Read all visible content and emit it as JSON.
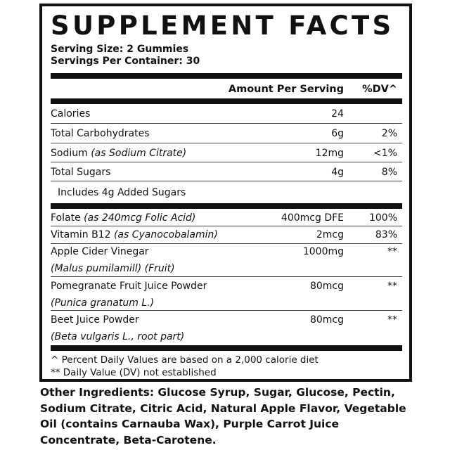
{
  "title": "SUPPLEMENT FACTS",
  "serving_size": "Serving Size: 2 Gummies",
  "servings_per_container": "Servings Per Container: 30",
  "header": {
    "amount": "Amount Per Serving",
    "dv": "%DV^"
  },
  "rows": [
    {
      "name": "Calories",
      "detail": "",
      "amount": "24",
      "dv": ""
    },
    {
      "name": "Total Carbohydrates",
      "detail": "",
      "amount": "6g",
      "dv": "2%"
    },
    {
      "name": "Sodium ",
      "detail": "(as Sodium Citrate)",
      "amount": "12mg",
      "dv": "<1%"
    },
    {
      "name": "Total Sugars",
      "detail": "",
      "amount": "4g",
      "dv": "8%"
    },
    {
      "name": "Includes 4g Added Sugars",
      "detail": "",
      "amount": "",
      "dv": ""
    }
  ],
  "ingredients": [
    {
      "name": "Folate ",
      "detail": "(as 240mcg Folic Acid)",
      "amount": "400mcg DFE",
      "dv": "100%"
    },
    {
      "name": "Vitamin B12 ",
      "detail": "(as Cyanocobalamin)",
      "amount": "2mcg",
      "dv": "83%"
    },
    {
      "name": "Apple Cider Vinegar",
      "sub": "(Malus pumilamill) (Fruit)",
      "amount": "1000mg",
      "dv": "**"
    },
    {
      "name": "Pomegranate Fruit Juice Powder",
      "sub": "(Punica granatum L.)",
      "amount": "80mcg",
      "dv": "**"
    },
    {
      "name": "Beet Juice Powder",
      "sub": "(Beta vulgaris L., root part)",
      "amount": "80mcg",
      "dv": "**"
    }
  ],
  "footnotes": [
    "^ Percent Daily Values are based on a 2,000 calorie diet",
    "** Daily Value (DV) not established"
  ],
  "other_ingredients": {
    "label": "Other Ingredients:",
    "text": " Glucose Syrup, Sugar, Glucose, Pectin, Sodium Citrate, Citric Acid, Natural Apple Flavor, Vegetable Oil (contains Carnauba Wax), Purple Carrot Juice Concentrate, Beta-Carotene."
  }
}
